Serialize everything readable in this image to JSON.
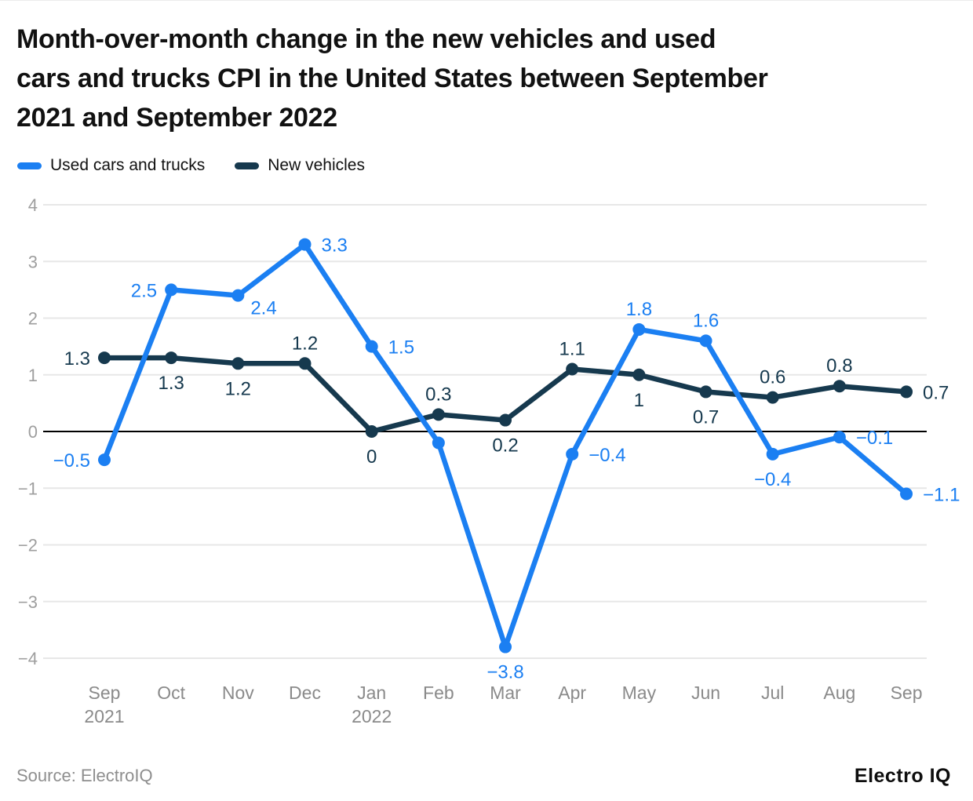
{
  "title": "Month-over-month change in the new vehicles and used cars and trucks CPI in the United States between September 2021 and September 2022",
  "title_lines": [
    "Month-over-month change in the new vehicles and used",
    "cars and trucks CPI in the United States between September",
    "2021 and September 2022"
  ],
  "legend": [
    {
      "label": "Used cars and trucks",
      "color": "#1b7ff2"
    },
    {
      "label": "New vehicles",
      "color": "#16394e"
    }
  ],
  "footer": {
    "source": "Source: ElectroIQ",
    "logo": "Electro IQ"
  },
  "chart_data": {
    "type": "line",
    "title": "Month-over-month change in the new vehicles and used cars and trucks CPI in the United States between September 2021 and September 2022",
    "categories": [
      "Sep",
      "Oct",
      "Nov",
      "Dec",
      "Jan",
      "Feb",
      "Mar",
      "Apr",
      "May",
      "Jun",
      "Jul",
      "Aug",
      "Sep"
    ],
    "category_sublabels": {
      "0": "2021",
      "4": "2022"
    },
    "series": [
      {
        "name": "New vehicles",
        "color": "#16394e",
        "values": [
          1.3,
          1.3,
          1.2,
          1.2,
          0,
          0.3,
          0.2,
          1.1,
          1,
          0.7,
          0.6,
          0.8,
          0.7
        ],
        "label_positions": [
          "left",
          "below",
          "below",
          "above",
          "below",
          "above",
          "below",
          "above",
          "below",
          "below",
          "above",
          "above",
          "right"
        ]
      },
      {
        "name": "Used cars and trucks",
        "color": "#1b7ff2",
        "values": [
          -0.5,
          2.5,
          2.4,
          3.3,
          1.5,
          -0.2,
          -3.8,
          -0.4,
          1.8,
          1.6,
          -0.4,
          -0.1,
          -1.1
        ],
        "label_positions": [
          "left",
          "left",
          "right-below",
          "right",
          "right",
          "hidden",
          "below",
          "right",
          "above",
          "above",
          "below",
          "right",
          "right"
        ]
      }
    ],
    "ylim": [
      -4,
      4
    ],
    "yticks": [
      4,
      3,
      2,
      1,
      0,
      -1,
      -2,
      -3,
      -4
    ],
    "grid": true,
    "legend_position": "top-left",
    "grid_color": "#e7e7e7",
    "zero_line_color": "#000000",
    "y_tick_color": "#9e9e9e",
    "x_tick_color": "#8a8a8a"
  }
}
